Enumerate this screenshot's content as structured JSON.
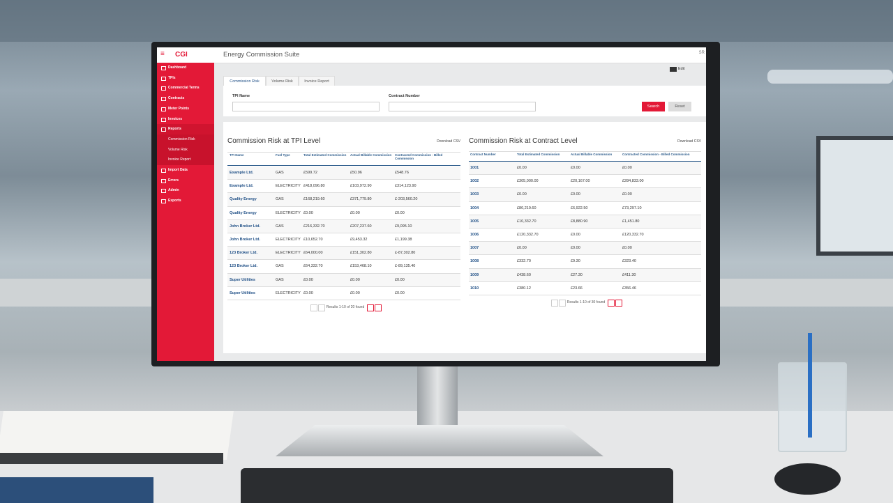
{
  "header": {
    "logo": "CGI",
    "app_title": "Energy Commission Suite",
    "user": "SR",
    "edit": "Edit"
  },
  "sidebar": [
    "Dashboard",
    "TPIs",
    "Commercial Terms",
    "Contracts",
    "Meter Points",
    "Invoices",
    "Reports",
    "Commission Risk",
    "Volume Risk",
    "Invoice Report",
    "Import Data",
    "Errors",
    "Admin",
    "Exports"
  ],
  "tabs": [
    "Commission Risk",
    "Volume Risk",
    "Invoice Report"
  ],
  "filters": {
    "labels": [
      "TPI Name",
      "Contract Number"
    ],
    "buttons": [
      "Search",
      "Reset"
    ]
  },
  "tables": [
    {
      "title": "Commission Risk at TPI Level",
      "download": "Download CSV",
      "columns": [
        "TPI Name",
        "Fuel Type",
        "Total Estimated Commission",
        "Actual Billable Commission",
        "Contracted Commission - Billed Commission"
      ],
      "rows": [
        [
          "Example Ltd.",
          "GAS",
          "£599.72",
          "£50.96",
          "£548.76"
        ],
        [
          "Example Ltd.",
          "ELECTRICITY",
          "£418,096.80",
          "£103,972.90",
          "£314,123.90"
        ],
        [
          "Quality Energy",
          "GAS",
          "£168,219.60",
          "£371,779.80",
          "£-203,560.20"
        ],
        [
          "Quality Energy",
          "ELECTRICITY",
          "£0.00",
          "£0.00",
          "£0.00"
        ],
        [
          "John Broker Ltd.",
          "GAS",
          "£216,332.70",
          "£207,237.60",
          "£9,095.10"
        ],
        [
          "John Broker Ltd.",
          "ELECTRICITY",
          "£10,652.70",
          "£9,453.32",
          "£1,199.38"
        ],
        [
          "123 Broker Ltd.",
          "ELECTRICITY",
          "£64,000.00",
          "£151,302.80",
          "£-87,302.80"
        ],
        [
          "123 Broker Ltd.",
          "GAS",
          "£64,332.70",
          "£153,468.10",
          "£-89,135.40"
        ],
        [
          "Super Utilities",
          "GAS",
          "£0.00",
          "£0.00",
          "£0.00"
        ],
        [
          "Super Utilities",
          "ELECTRICITY",
          "£0.00",
          "£0.00",
          "£0.00"
        ]
      ],
      "pagination": "Results 1-10 of 20 found"
    },
    {
      "title": "Commission Risk at Contract Level",
      "download": "Download CSV",
      "columns": [
        "Contract Number",
        "Total Estimated Commission",
        "Actual Billable Commission",
        "Contracted Commission - Billed Commission"
      ],
      "rows": [
        [
          "1001",
          "£0.00",
          "£0.00",
          "£0.00"
        ],
        [
          "1002",
          "£305,000.00",
          "£20,167.00",
          "£284,833.00"
        ],
        [
          "1003",
          "£0.00",
          "£0.00",
          "£0.00"
        ],
        [
          "1004",
          "£80,219.60",
          "£6,922.50",
          "£73,297.10"
        ],
        [
          "1005",
          "£10,332.70",
          "£8,880.90",
          "£1,451.80"
        ],
        [
          "1006",
          "£120,332.70",
          "£0.00",
          "£120,332.70"
        ],
        [
          "1007",
          "£0.00",
          "£0.00",
          "£0.00"
        ],
        [
          "1008",
          "£332.70",
          "£9.30",
          "£323.40"
        ],
        [
          "1009",
          "£438.60",
          "£27.30",
          "£411.30"
        ],
        [
          "1010",
          "£380.12",
          "£23.66",
          "£356.46"
        ]
      ],
      "pagination": "Results 1-10 of 30 found"
    }
  ]
}
